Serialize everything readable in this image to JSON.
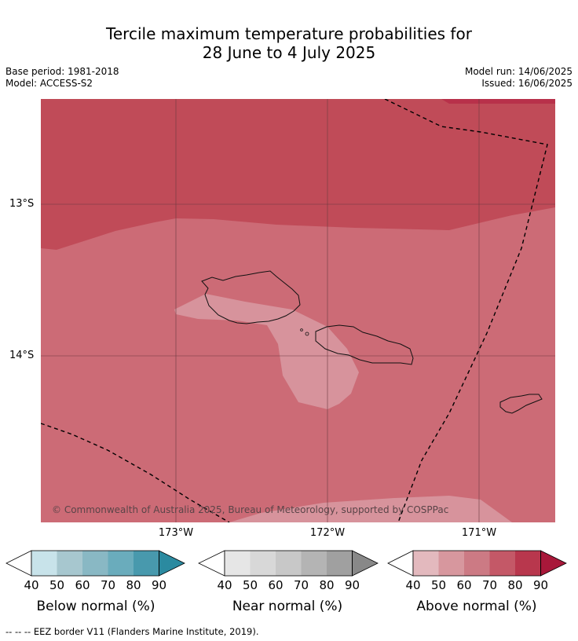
{
  "title_line1": "Tercile maximum temperature probabilities for",
  "title_line2": "28 June to 4 July 2025",
  "meta": {
    "base_period": "Base period: 1981-2018",
    "model": "Model: ACCESS-S2",
    "model_run": "Model run: 14/06/2025",
    "issued": "Issued: 16/06/2025"
  },
  "map": {
    "lat_labels": [
      "13°S",
      "14°S"
    ],
    "lon_labels": [
      "173°W",
      "172°W",
      "171°W"
    ],
    "copyright": "© Commonwealth of Australia 2025, Bureau of Meteorology, supported by COSPPac",
    "colors": {
      "above_80_90": "#c04b58",
      "above_70_80": "#cc6b76",
      "above_60_70": "#d7939c",
      "above_90_plus": "#b8314a"
    }
  },
  "legends": [
    {
      "title": "Below normal (%)",
      "ticks": [
        "40",
        "50",
        "60",
        "70",
        "80",
        "90"
      ],
      "colors": [
        "#c8e3ea",
        "#a7c7cf",
        "#89b8c4",
        "#6aacbc",
        "#4899ad",
        "#2b8aa0"
      ]
    },
    {
      "title": "Near normal (%)",
      "ticks": [
        "40",
        "50",
        "60",
        "70",
        "80",
        "90"
      ],
      "colors": [
        "#e6e6e6",
        "#d8d8d8",
        "#c8c8c8",
        "#b4b4b4",
        "#a0a0a0",
        "#888888"
      ]
    },
    {
      "title": "Above normal (%)",
      "ticks": [
        "40",
        "50",
        "60",
        "70",
        "80",
        "90"
      ],
      "colors": [
        "#e3b9be",
        "#d7979e",
        "#cc7a84",
        "#c45867",
        "#b8374d",
        "#a8183a"
      ]
    }
  ],
  "footer": "--  --  -- EEZ border V11 (Flanders Marine Institute, 2019)."
}
